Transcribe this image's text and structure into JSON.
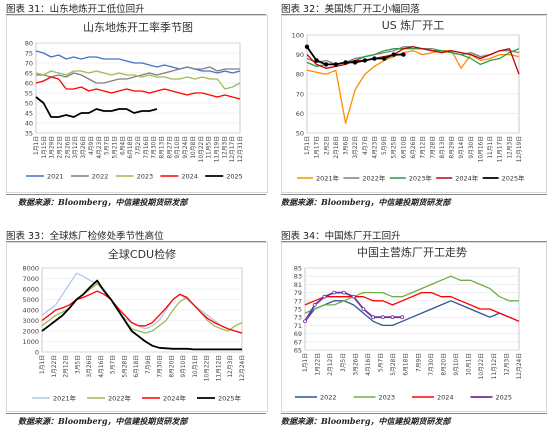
{
  "figures": [
    {
      "caption": "图表 31：山东地炼开工低位回升",
      "source": "数据来源：Bloomberg，中信建投期货研发部",
      "chart_data": {
        "type": "line",
        "title": "山东地炼开工率季节图",
        "ylim": [
          35,
          80
        ],
        "yticks": [
          35,
          40,
          45,
          50,
          55,
          60,
          65,
          70,
          75,
          80
        ],
        "xticks": [
          "1月1日",
          "1月15日",
          "1月29日",
          "2月12日",
          "2月26日",
          "3月12日",
          "3月26日",
          "4月9日",
          "4月23日",
          "5月7日",
          "5月21日",
          "6月4日",
          "6月18日",
          "7月2日",
          "7月16日",
          "7月30日",
          "8月13日",
          "8月27日",
          "9月10日",
          "9月24日",
          "10月8日",
          "10月22日",
          "11月5日",
          "11月19日",
          "12月3日",
          "12月17日",
          "12月31日"
        ],
        "x": [
          0,
          0.037,
          0.074,
          0.111,
          0.148,
          0.185,
          0.222,
          0.259,
          0.296,
          0.333,
          0.37,
          0.407,
          0.444,
          0.481,
          0.519,
          0.556,
          0.593,
          0.63,
          0.667,
          0.704,
          0.741,
          0.778,
          0.815,
          0.852,
          0.889,
          0.926,
          0.963,
          1
        ],
        "series": [
          {
            "name": "2021",
            "color": "#4472c4",
            "values": [
              76,
              75,
              73,
              74,
              72,
              73,
              72,
              73,
              73,
              72,
              72,
              72,
              71,
              70,
              70,
              69,
              68,
              69,
              68,
              67,
              68,
              67,
              66,
              66,
              65,
              66,
              65,
              66
            ]
          },
          {
            "name": "2022",
            "color": "#7f7f7f",
            "values": [
              64,
              64,
              63,
              64,
              63,
              65,
              64,
              62,
              60,
              60,
              61,
              62,
              62,
              63,
              64,
              65,
              64,
              65,
              66,
              67,
              68,
              67,
              67,
              68,
              66,
              67,
              67,
              67
            ]
          },
          {
            "name": "2023",
            "color": "#9bbb59",
            "values": [
              65,
              64,
              66,
              65,
              64,
              66,
              66,
              65,
              66,
              65,
              64,
              65,
              64,
              64,
              63,
              64,
              63,
              63,
              62,
              62,
              63,
              62,
              63,
              62,
              62,
              57,
              58,
              60
            ]
          },
          {
            "name": "2024",
            "color": "#ff0000",
            "values": [
              60,
              61,
              63,
              62,
              57,
              57,
              58,
              56,
              57,
              56,
              55,
              56,
              57,
              56,
              56,
              55,
              56,
              57,
              56,
              55,
              54,
              55,
              55,
              54,
              53,
              54,
              53,
              52
            ]
          },
          {
            "name": "2025",
            "color": "#000000",
            "values": [
              53,
              50,
              43,
              43,
              44,
              43,
              45,
              45,
              47,
              46,
              46,
              47,
              47,
              45,
              46,
              46,
              47,
              null,
              null,
              null,
              null,
              null,
              null,
              null,
              null,
              null,
              null,
              null
            ]
          }
        ]
      }
    },
    {
      "caption": "图表 32：美国炼厂开工小幅回落",
      "source": "数据来源：Bloomberg，中信建投期货研发部",
      "chart_data": {
        "type": "line",
        "title": "US 炼厂开工",
        "ylim": [
          50,
          100
        ],
        "yticks": [
          50,
          60,
          70,
          80,
          90,
          100
        ],
        "xticks": [
          "1月1日",
          "1月17日",
          "2月2日",
          "2月18日",
          "3月6日",
          "3月22日",
          "4月7日",
          "4月23日",
          "5月9日",
          "5月25日",
          "6月10日",
          "6月26日",
          "7月12日",
          "7月28日",
          "8月13日",
          "8月29日",
          "9月14日",
          "9月30日",
          "10月16日",
          "11月1日",
          "11月17日",
          "12月3日",
          "12月19日"
        ],
        "x": [
          0,
          0.045,
          0.09,
          0.136,
          0.182,
          0.227,
          0.273,
          0.318,
          0.364,
          0.409,
          0.455,
          0.5,
          0.545,
          0.591,
          0.636,
          0.682,
          0.727,
          0.773,
          0.818,
          0.864,
          0.909,
          0.955,
          1
        ],
        "series": [
          {
            "name": "2021年",
            "color": "#ff8c00",
            "values": [
              82,
              81,
              80,
              82,
              55,
              72,
              80,
              84,
              87,
              89,
              91,
              92,
              90,
              91,
              92,
              92,
              83,
              90,
              87,
              88,
              90,
              90,
              89
            ]
          },
          {
            "name": "2022年",
            "color": "#7f7f7f",
            "values": [
              88,
              86,
              87,
              85,
              86,
              88,
              89,
              90,
              91,
              92,
              94,
              94,
              93,
              93,
              92,
              91,
              90,
              91,
              89,
              90,
              92,
              92,
              91
            ]
          },
          {
            "name": "2023年",
            "color": "#2e9c46",
            "values": [
              86,
              84,
              85,
              85,
              86,
              87,
              89,
              90,
              92,
              93,
              93,
              93,
              93,
              92,
              92,
              91,
              90,
              88,
              85,
              87,
              88,
              91,
              93
            ]
          },
          {
            "name": "2024年",
            "color": "#c00000",
            "values": [
              90,
              85,
              83,
              84,
              85,
              87,
              87,
              88,
              89,
              90,
              93,
              94,
              93,
              92,
              91,
              92,
              91,
              90,
              88,
              90,
              92,
              93,
              80
            ]
          },
          {
            "name": "2025年",
            "color": "#000000",
            "values": [
              94,
              87,
              85,
              85,
              86,
              86,
              87,
              88,
              88,
              90,
              90,
              null,
              null,
              null,
              null,
              null,
              null,
              null,
              null,
              null,
              null,
              null,
              null
            ]
          }
        ]
      }
    },
    {
      "caption": "图表 33：全球炼厂检修处季节性高位",
      "source": "数据来源：Bloomberg，中信建投期货研发部",
      "chart_data": {
        "type": "line",
        "title": "全球CDU检修",
        "ylim": [
          0,
          8000
        ],
        "yticks": [
          0,
          1000,
          2000,
          3000,
          4000,
          5000,
          6000,
          7000,
          8000
        ],
        "xticks": [
          "1月1日",
          "1月22日",
          "2月12日",
          "3月5日",
          "3月26日",
          "4月16日",
          "5月7日",
          "5月28日",
          "6月18日",
          "7月9日",
          "7月30日",
          "8月20日",
          "9月10日",
          "10月1日",
          "10月22日",
          "11月12日",
          "12月3日",
          "12月24日"
        ],
        "x": [
          0,
          0.0345,
          0.069,
          0.1034,
          0.1379,
          0.1724,
          0.2069,
          0.2414,
          0.2759,
          0.3103,
          0.3448,
          0.3793,
          0.4138,
          0.4483,
          0.4828,
          0.5172,
          0.5517,
          0.5862,
          0.6207,
          0.6552,
          0.6897,
          0.7241,
          0.7586,
          0.7931,
          0.8276,
          0.8621,
          0.8966,
          0.931,
          0.9655,
          1
        ],
        "series": [
          {
            "name": "2021年",
            "color": "#b4c7e7",
            "values": [
              3500,
              4000,
              4500,
              5500,
              6500,
              7500,
              7200,
              6800,
              6500,
              6000,
              5000,
              4000,
              3200,
              2800,
              2500,
              2200,
              2500,
              3000,
              4000,
              5000,
              5500,
              5000,
              4500,
              4000,
              3500,
              3000,
              2500,
              2200,
              2000,
              1800
            ]
          },
          {
            "name": "2022年",
            "color": "#9bbb59",
            "values": [
              2500,
              3000,
              3500,
              3800,
              4200,
              5000,
              5500,
              6000,
              6500,
              5800,
              5000,
              4000,
              3000,
              2200,
              2000,
              1800,
              2000,
              2500,
              3000,
              4000,
              4800,
              5200,
              4500,
              3800,
              3000,
              2500,
              2200,
              2000,
              2500,
              2800
            ]
          },
          {
            "name": "2024年",
            "color": "#ff0000",
            "values": [
              3000,
              3500,
              4000,
              4200,
              4500,
              5000,
              5200,
              5500,
              5800,
              5500,
              5000,
              4200,
              3500,
              2800,
              2500,
              2500,
              2800,
              3500,
              4200,
              5000,
              5500,
              5200,
              4500,
              3800,
              3200,
              2800,
              2500,
              2200,
              2000,
              1800
            ]
          },
          {
            "name": "2025年",
            "color": "#000000",
            "values": [
              2000,
              2500,
              3000,
              3500,
              4200,
              5000,
              5500,
              6200,
              6800,
              5800,
              5000,
              4000,
              3000,
              2000,
              1500,
              1000,
              600,
              400,
              350,
              300,
              300,
              300,
              250,
              250,
              250,
              250,
              250,
              250,
              250,
              250
            ]
          }
        ]
      }
    },
    {
      "caption": "图表 34：中国炼厂开工回升",
      "source": "数据来源：Bloomberg，中信建投期货研发部",
      "chart_data": {
        "type": "line",
        "title": "中国主营炼厂开工走势",
        "ylim": [
          65,
          85
        ],
        "yticks": [
          65,
          67,
          69,
          71,
          73,
          75,
          77,
          79,
          81,
          83,
          85
        ],
        "xticks": [
          "1月1日",
          "1月22日",
          "2月12日",
          "3月5日",
          "3月26日",
          "4月16日",
          "5月7日",
          "5月28日",
          "6月18日",
          "7月9日",
          "7月30日",
          "8月20日",
          "9月10日",
          "10月1日",
          "10月22日",
          "11月12日",
          "12月3日",
          "12月24日"
        ],
        "x": [
          0,
          0.0455,
          0.0909,
          0.1364,
          0.1818,
          0.2273,
          0.2727,
          0.3182,
          0.3636,
          0.4091,
          0.4545,
          0.5,
          0.5455,
          0.5909,
          0.6364,
          0.6818,
          0.7273,
          0.7727,
          0.8182,
          0.8636,
          0.9091,
          0.9545,
          1
        ],
        "series": [
          {
            "name": "2022",
            "color": "#2f5597",
            "values": [
              72,
              75,
              76,
              77,
              77,
              76,
              74,
              72,
              71,
              71,
              72,
              73,
              74,
              75,
              76,
              77,
              76,
              75,
              74,
              73,
              74,
              73,
              72
            ]
          },
          {
            "name": "2023",
            "color": "#70ad47",
            "values": [
              74,
              75,
              76,
              76,
              77,
              78,
              79,
              79,
              79,
              78,
              78,
              79,
              80,
              81,
              82,
              83,
              82,
              82,
              81,
              80,
              78,
              77,
              77
            ]
          },
          {
            "name": "2024",
            "color": "#ff0000",
            "values": [
              76,
              77,
              78,
              78,
              78,
              78,
              78,
              77,
              77,
              76,
              77,
              78,
              79,
              79,
              78,
              78,
              77,
              76,
              75,
              75,
              74,
              73,
              72
            ]
          },
          {
            "name": "2025",
            "color": "#7030a0",
            "values": [
              72,
              76,
              78,
              79,
              79,
              78,
              75,
              73,
              73,
              73,
              73,
              null,
              null,
              null,
              null,
              null,
              null,
              null,
              null,
              null,
              null,
              null,
              null
            ]
          }
        ]
      }
    }
  ]
}
